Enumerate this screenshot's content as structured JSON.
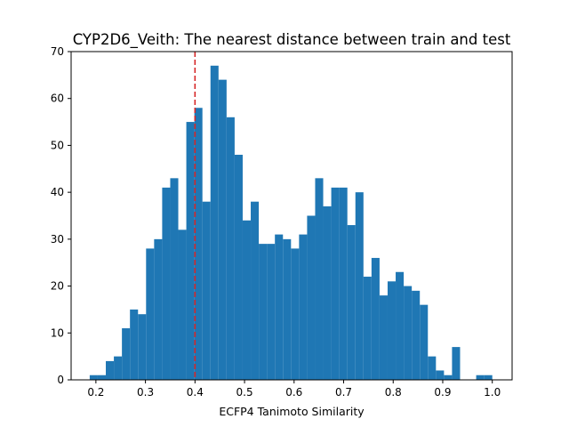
{
  "colors": {
    "bar": "#1f77b4",
    "reference_line": "#d62728",
    "axes": "#000000",
    "background": "#ffffff"
  },
  "chart_data": {
    "type": "bar",
    "title": "CYP2D6_Veith: The nearest distance between train and test",
    "xlabel": "ECFP4 Tanimoto Similarity",
    "ylabel": "",
    "grid": false,
    "legend": "none",
    "xlim": [
      0.15,
      1.04
    ],
    "ylim": [
      0,
      70
    ],
    "xticks": [
      0.2,
      0.3,
      0.4,
      0.5,
      0.6,
      0.7,
      0.8,
      0.9,
      1.0
    ],
    "xtick_labels": [
      "0.2",
      "0.3",
      "0.4",
      "0.5",
      "0.6",
      "0.7",
      "0.8",
      "0.9",
      "1.0"
    ],
    "yticks": [
      0,
      10,
      20,
      30,
      40,
      50,
      60,
      70
    ],
    "ytick_labels": [
      "0",
      "10",
      "20",
      "30",
      "40",
      "50",
      "60",
      "70"
    ],
    "bin_start": 0.1875,
    "bin_width": 0.01625,
    "values": [
      1,
      1,
      4,
      5,
      11,
      15,
      14,
      28,
      30,
      41,
      43,
      32,
      55,
      58,
      38,
      67,
      64,
      56,
      48,
      34,
      38,
      29,
      29,
      31,
      30,
      28,
      31,
      35,
      43,
      37,
      41,
      41,
      33,
      40,
      22,
      26,
      18,
      21,
      23,
      20,
      19,
      16,
      5,
      2,
      1,
      7,
      0,
      0,
      1,
      1
    ],
    "reference_line": {
      "x": 0.4,
      "style": "dashed"
    }
  }
}
